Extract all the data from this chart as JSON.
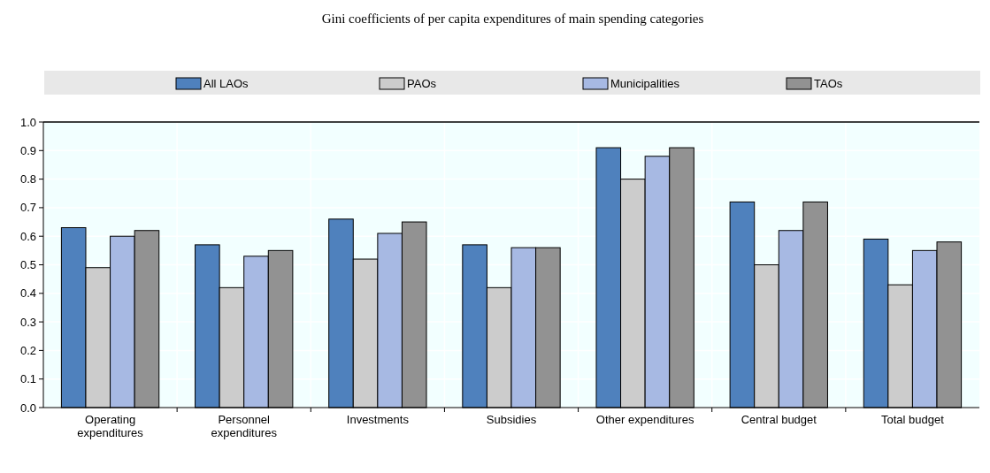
{
  "chart_data": {
    "type": "bar",
    "title": "Gini coefficients of per capita expenditures of main spending categories",
    "categories": [
      "Operating expenditures",
      "Personnel expenditures",
      "Investments",
      "Subsidies",
      "Other expenditures",
      "Central budget",
      "Total budget"
    ],
    "series": [
      {
        "name": "All LAOs",
        "color": "#4f81bd",
        "values": [
          0.63,
          0.57,
          0.66,
          0.57,
          0.91,
          0.72,
          0.59
        ]
      },
      {
        "name": "PAOs",
        "color": "#cccccc",
        "values": [
          0.49,
          0.42,
          0.52,
          0.42,
          0.8,
          0.5,
          0.43
        ]
      },
      {
        "name": "Municipalities",
        "color": "#a7b9e3",
        "values": [
          0.6,
          0.53,
          0.61,
          0.56,
          0.88,
          0.62,
          0.55
        ]
      },
      {
        "name": "TAOs",
        "color": "#929292",
        "values": [
          0.62,
          0.55,
          0.65,
          0.56,
          0.91,
          0.72,
          0.58
        ]
      }
    ],
    "ylim": [
      0,
      1
    ],
    "yticks": [
      {
        "value": 0,
        "label": "0.0"
      },
      0.1,
      0.2,
      0.3,
      0.4,
      0.5,
      0.6,
      0.7,
      0.8,
      0.9,
      {
        "value": 1,
        "label": "1.0"
      }
    ],
    "grid": true,
    "legend": "top"
  }
}
